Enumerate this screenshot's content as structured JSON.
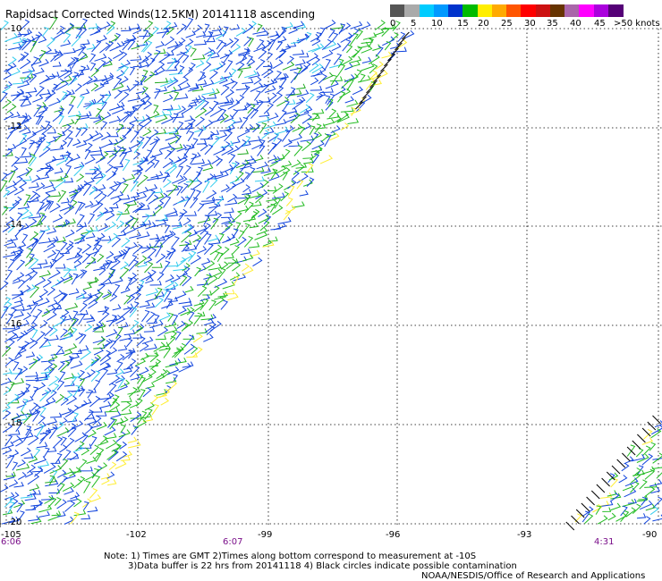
{
  "title": "Rapidsact Corrected Winds(12.5KM) 20141118 ascending",
  "legend": {
    "colors": [
      "#555555",
      "#aaaaaa",
      "#00ccff",
      "#0099ff",
      "#0033cc",
      "#00bb00",
      "#ffee00",
      "#ffaa00",
      "#ff5500",
      "#ff0000",
      "#cc1111",
      "#663300",
      "#aa66aa",
      "#ff00ff",
      "#aa00dd",
      "#550077"
    ],
    "labels": [
      "0",
      "5",
      "10",
      "15",
      "20",
      "25",
      "30",
      "35",
      "40",
      "45",
      ">50 knots"
    ]
  },
  "lat_labels": [
    "-10",
    "-12",
    "-14",
    "-16",
    "-18",
    "-20"
  ],
  "lon_labels": [
    "-105",
    "-102",
    "-99",
    "-96",
    "-93",
    "-90"
  ],
  "time_labels": [
    "6:06",
    "6:07",
    "4:31"
  ],
  "notes": {
    "line1": "Note: 1) Times are GMT 2)Times along bottom correspond to measurement at -10S",
    "line2": "3)Data buffer is 22 hrs from 20141118 4) Black circles indicate possible contamination",
    "line3": "NOAA/NESDIS/Office of Research and Applications"
  }
}
